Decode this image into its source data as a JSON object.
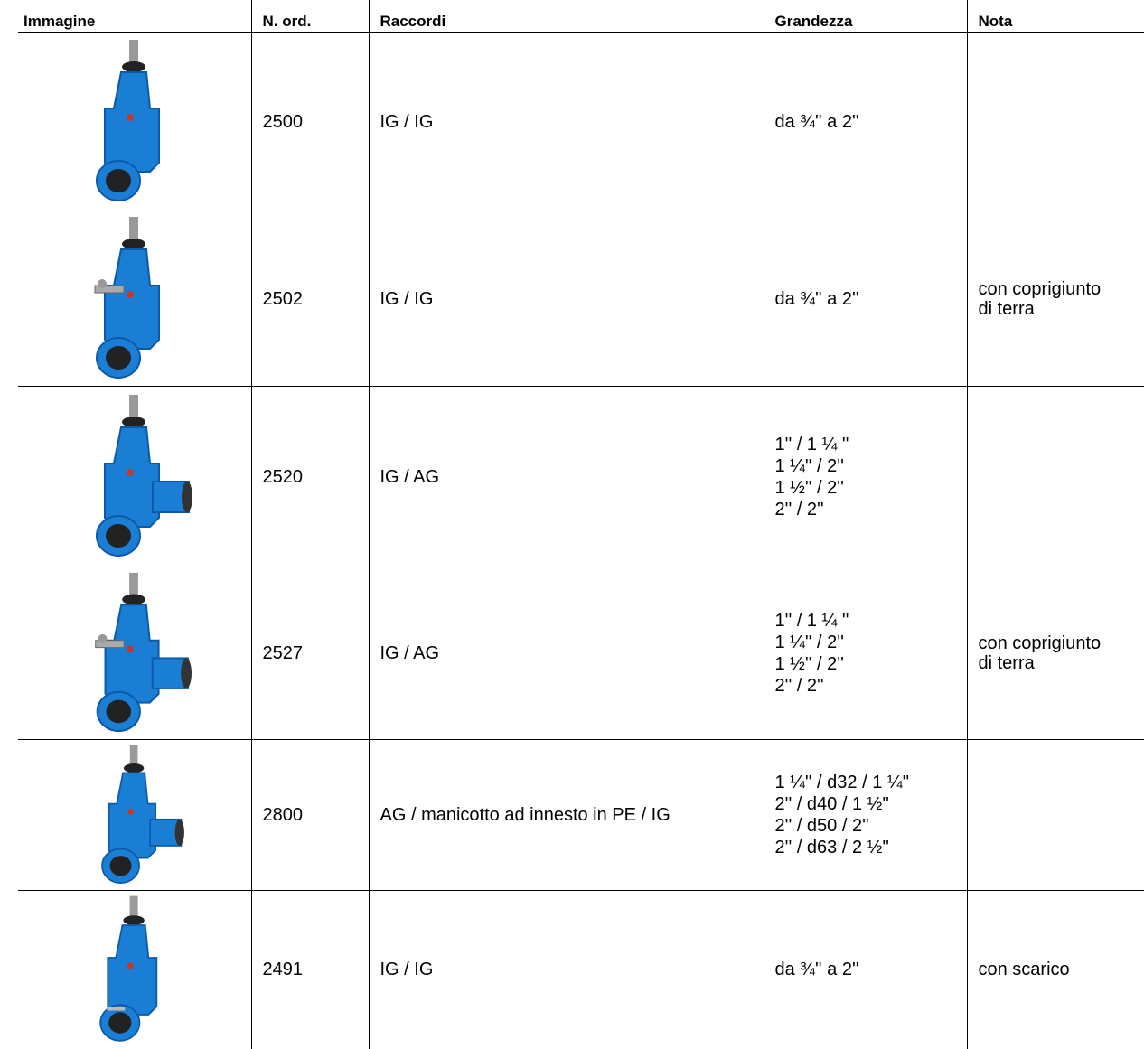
{
  "table": {
    "headers": [
      "Immagine",
      "N. ord.",
      "Raccordi",
      "Grandezza",
      "Nota"
    ],
    "rows": [
      {
        "order": "2500",
        "connections": "IG / IG",
        "size": [
          "da ¾'' a 2''"
        ],
        "note": []
      },
      {
        "order": "2502",
        "connections": "IG / IG",
        "size": [
          "da ¾'' a 2''"
        ],
        "note": [
          "con coprigiunto",
          "di terra"
        ]
      },
      {
        "order": "2520",
        "connections": "IG / AG",
        "size": [
          "1'' / 1 ¼ ''",
          "1 ¼'' / 2''",
          "1 ½'' / 2''",
          "2'' / 2''"
        ],
        "note": []
      },
      {
        "order": "2527",
        "connections": "IG / AG",
        "size": [
          "1'' / 1 ¼ ''",
          "1 ¼'' / 2''",
          "1 ½'' / 2''",
          "2'' / 2''"
        ],
        "note": [
          "con coprigiunto",
          "di terra"
        ]
      },
      {
        "order": "2800",
        "connections": "AG / manicotto ad innesto in PE / IG",
        "size": [
          "1 ¼'' / d32 / 1 ¼''",
          "2'' / d40 / 1 ½''",
          "2'' / d50 / 2''",
          "2'' / d63 / 2 ½''"
        ],
        "note": []
      },
      {
        "order": "2491",
        "connections": "IG / IG",
        "size": [
          "da ¾'' a 2''"
        ],
        "note": [
          "con scarico"
        ]
      }
    ]
  }
}
